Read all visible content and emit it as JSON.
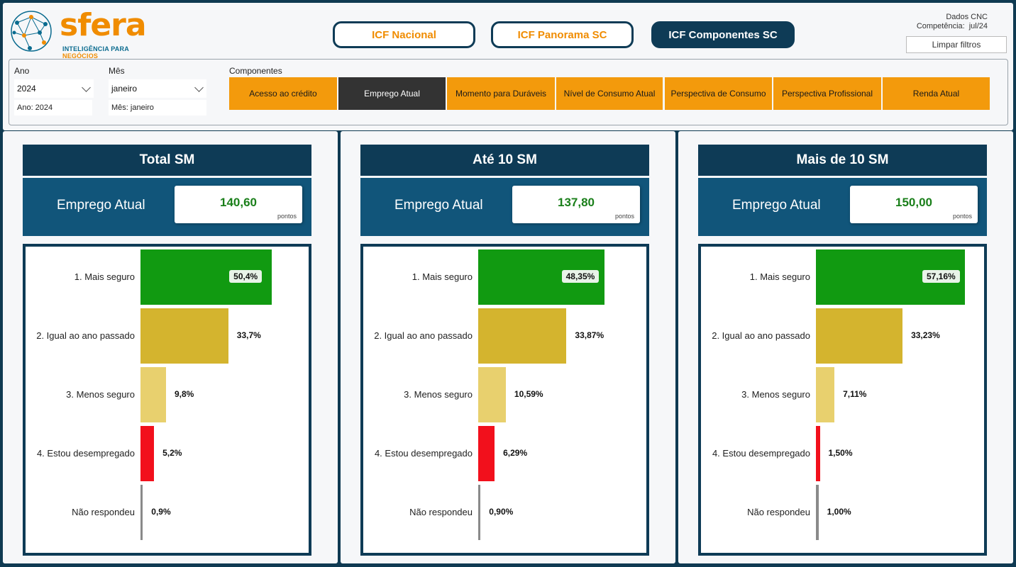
{
  "logo": {
    "word": "sfera",
    "tag_a": "INTELIGÊNCIA PARA ",
    "tag_b": "NEGÓCIOS"
  },
  "nav": {
    "items": [
      {
        "label": "ICF Nacional"
      },
      {
        "label": "ICF Panorama SC"
      },
      {
        "label": "ICF Componentes SC"
      }
    ],
    "active_index": 2
  },
  "meta": {
    "source": "Dados CNC",
    "competencia_label": "Competência:",
    "competencia_value": "jul/24"
  },
  "clear_filters": "Limpar filtros",
  "filters": {
    "ano": {
      "label": "Ano",
      "value": "2024",
      "chip": "Ano: 2024"
    },
    "mes": {
      "label": "Mês",
      "value": "janeiro",
      "chip": "Mês: janeiro"
    },
    "componentes_label": "Componentes",
    "componentes": [
      "Acesso ao crédito",
      "Emprego Atual",
      "Momento para Duráveis",
      "Nível de Consumo Atual",
      "Perspectiva de Consumo",
      "Perspectiva Profissional",
      "Renda Atual"
    ],
    "active_component": "Emprego Atual"
  },
  "colors": {
    "mais_seguro": "#119a11",
    "igual": "#d4b42e",
    "menos": "#e8d06e",
    "desempregado": "#f2101c",
    "nao_respondeu": "#8a8a8a"
  },
  "panels": [
    {
      "title": "Total SM",
      "kpi_label": "Emprego Atual",
      "kpi_value": "140,60",
      "kpi_unit": "pontos"
    },
    {
      "title": "Até 10 SM",
      "kpi_label": "Emprego Atual",
      "kpi_value": "137,80",
      "kpi_unit": "pontos"
    },
    {
      "title": "Mais de 10 SM",
      "kpi_label": "Emprego Atual",
      "kpi_value": "150,00",
      "kpi_unit": "pontos"
    }
  ],
  "chart_data": [
    {
      "type": "bar",
      "categories": [
        "1. Mais seguro",
        "2. Igual ao ano passado",
        "3. Menos seguro",
        "4. Estou desempregado",
        "Não respondeu"
      ],
      "values": [
        50.4,
        33.7,
        9.8,
        5.2,
        0.9
      ],
      "labels": [
        "50,4%",
        "33,7%",
        "9,8%",
        "5,2%",
        "0,9%"
      ]
    },
    {
      "type": "bar",
      "categories": [
        "1. Mais seguro",
        "2. Igual ao ano passado",
        "3. Menos seguro",
        "4. Estou desempregado",
        "Não respondeu"
      ],
      "values": [
        48.35,
        33.87,
        10.59,
        6.29,
        0.9
      ],
      "labels": [
        "48,35%",
        "33,87%",
        "10,59%",
        "6,29%",
        "0,90%"
      ]
    },
    {
      "type": "bar",
      "categories": [
        "1. Mais seguro",
        "2. Igual ao ano passado",
        "3. Menos seguro",
        "4. Estou desempregado",
        "Não respondeu"
      ],
      "values": [
        57.16,
        33.23,
        7.11,
        1.5,
        1.0
      ],
      "labels": [
        "57,16%",
        "33,23%",
        "7,11%",
        "1,50%",
        "1,00%"
      ]
    }
  ]
}
